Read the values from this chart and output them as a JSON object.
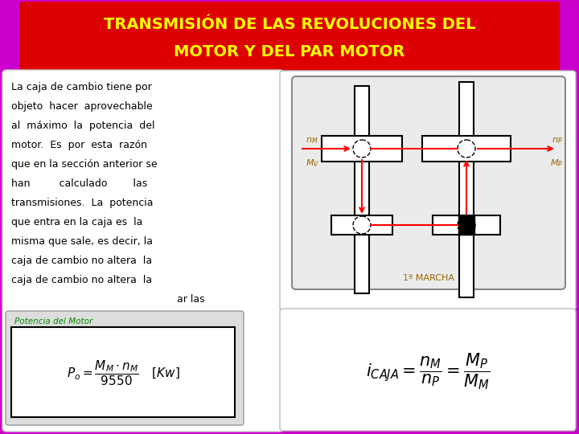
{
  "bg_color": "#CC00CC",
  "title_bg": "#DD0000",
  "title_color": "#FFFF00",
  "title_line1": "TRANSMISIÓN DE LAS REVOLUCIONES DEL",
  "title_line2": "MOTOR Y DEL PAR MOTOR",
  "body_lines": [
    "La caja de cambio tiene por",
    "objeto  hacer  aprovechable",
    "al  máximo  la  potencia  del",
    "motor.  Es  por  esta  razón",
    "que en la sección anterior se",
    "han         calculado        las",
    "transmisiones.  La  potencia",
    "que entra en la caja es  la",
    "misma que sale, es decir, la",
    "caja de cambio no altera  la"
  ],
  "partial_line": "ar las",
  "text_color": "#000000",
  "formula_label": "Potencia del Motor",
  "formula_label_color": "#008800",
  "marcha_label": "1ª MARCHA",
  "label_color": "#996600",
  "nM_label": "$n_M$",
  "MV_label": "$M_V$",
  "nP_label": "$n_P$",
  "MP_label": "$M_P$"
}
